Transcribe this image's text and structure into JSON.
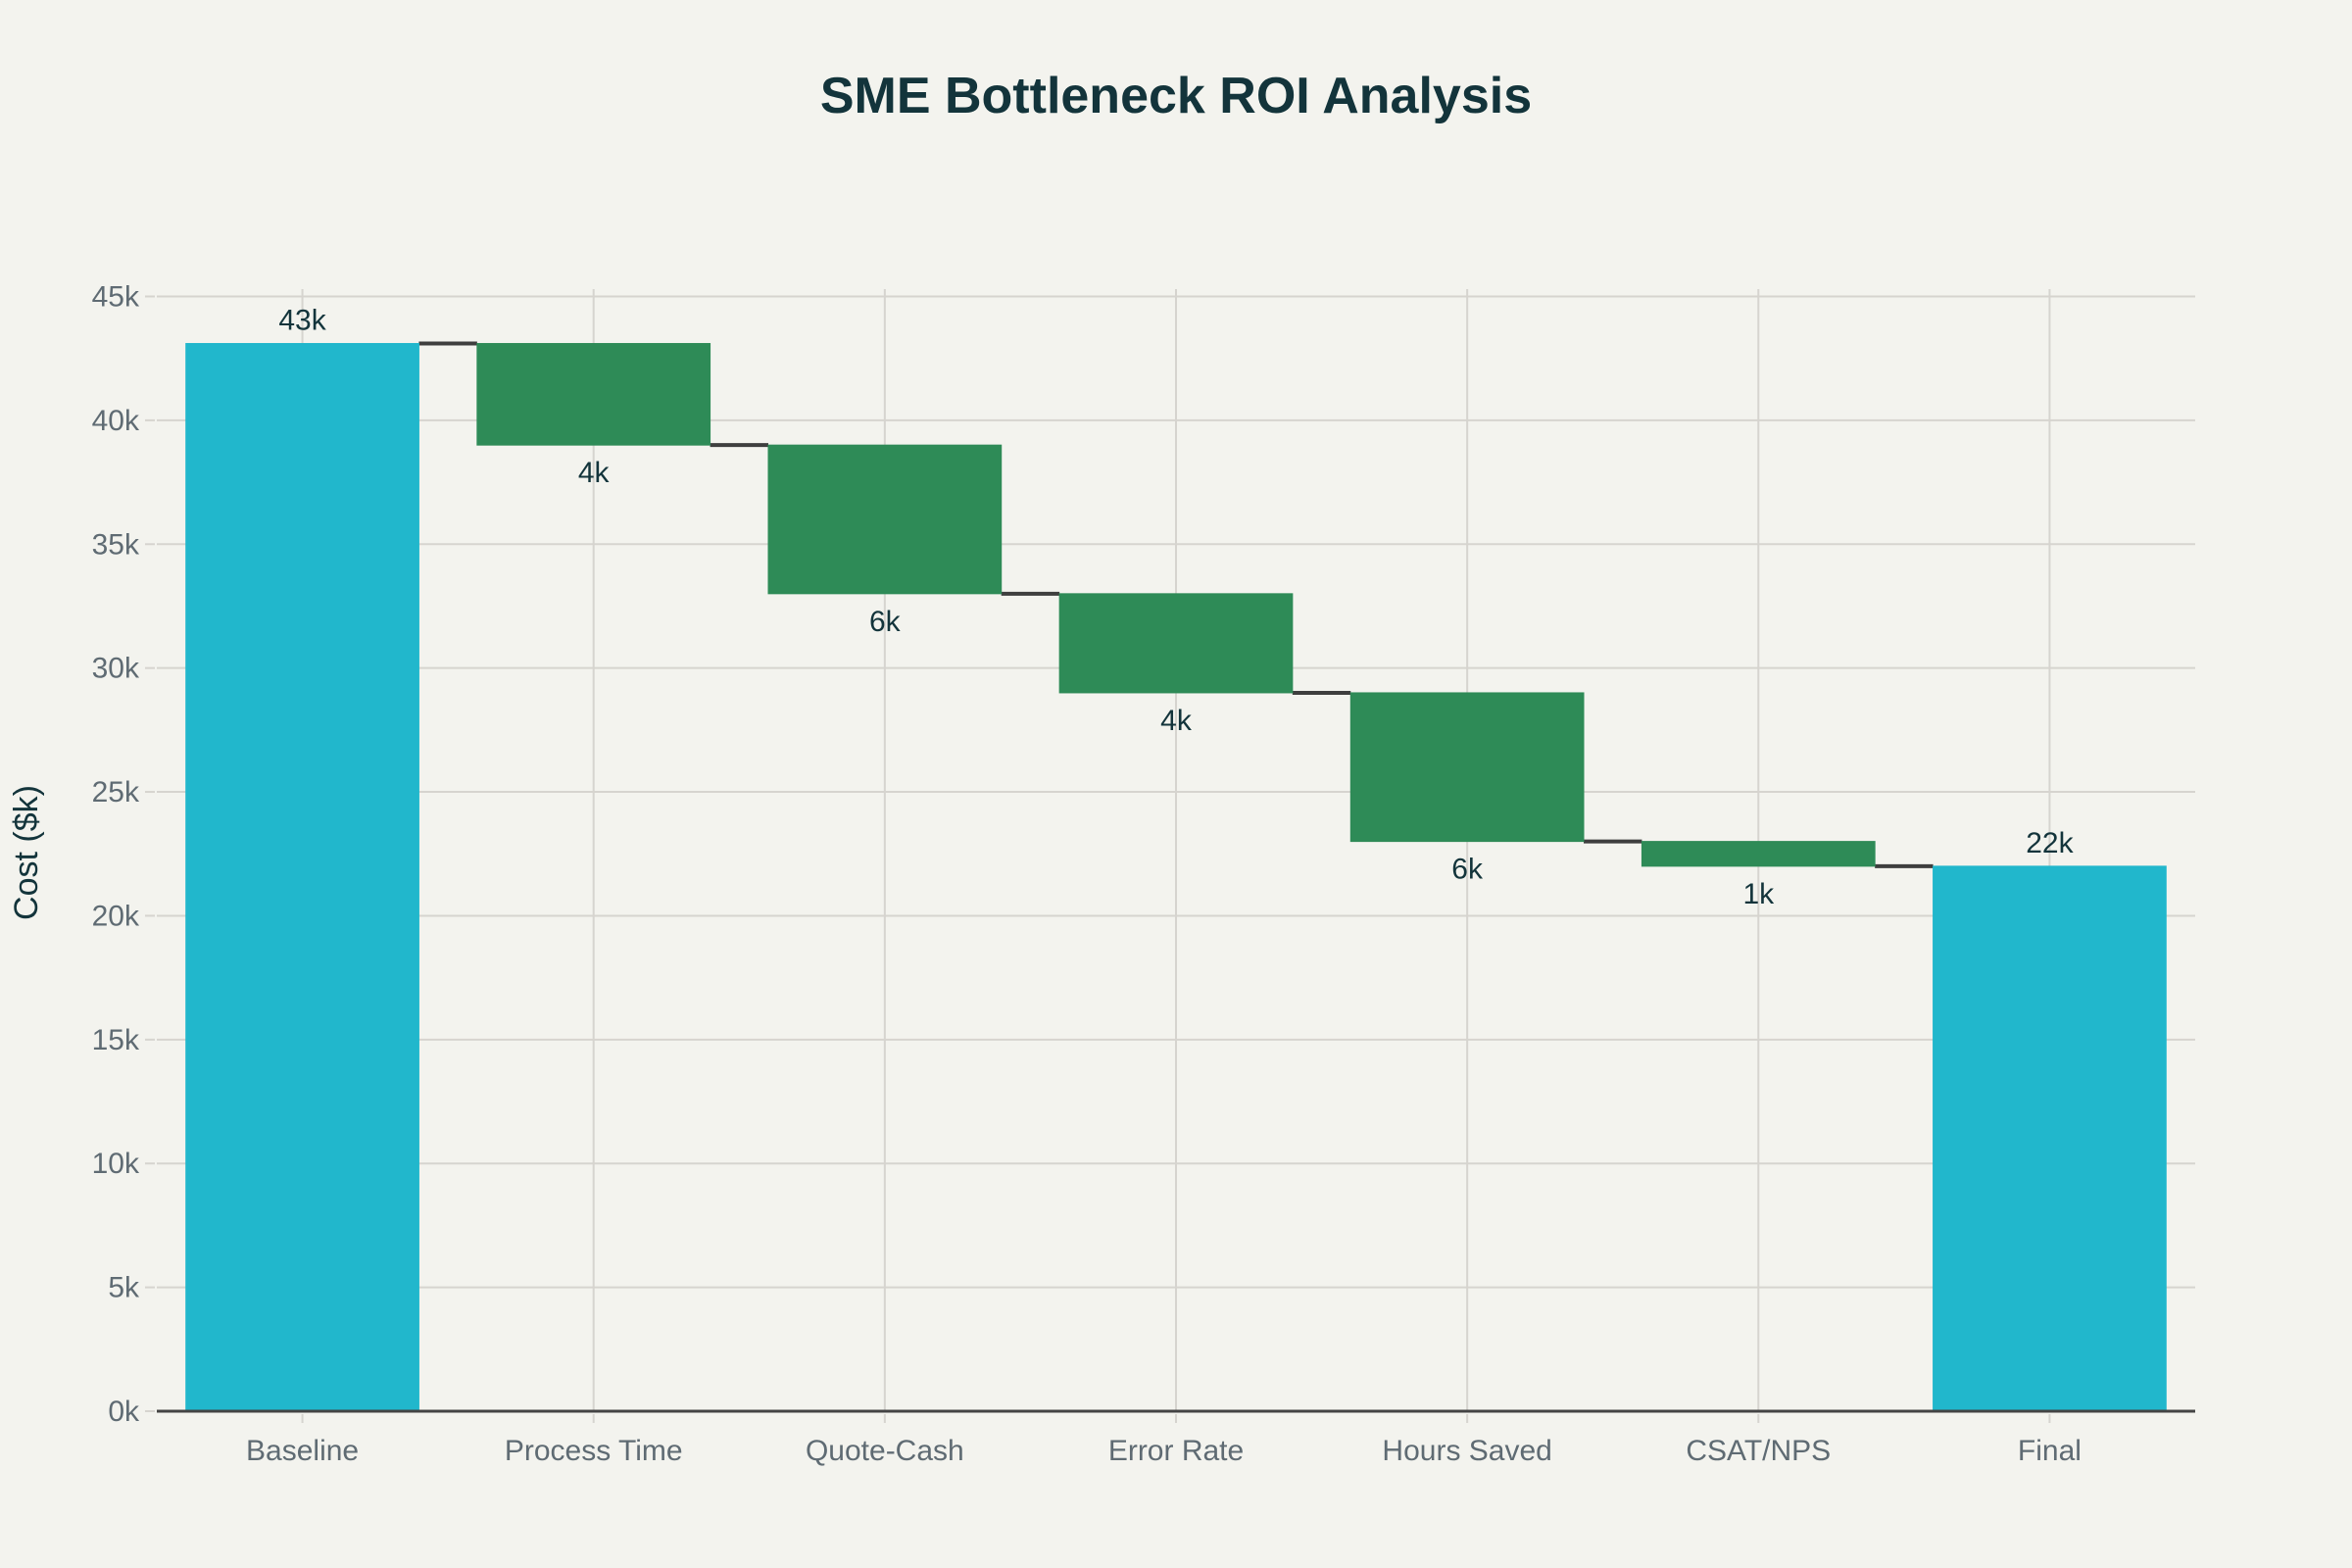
{
  "chart_data": {
    "type": "bar",
    "subtype": "waterfall",
    "title": "SME Bottleneck ROI Analysis",
    "xlabel": "",
    "ylabel": "Cost ($k)",
    "ylim": [
      0,
      45
    ],
    "yticks": [
      0,
      5,
      10,
      15,
      20,
      25,
      30,
      35,
      40,
      45
    ],
    "ytick_labels": [
      "0k",
      "5k",
      "10k",
      "15k",
      "20k",
      "25k",
      "30k",
      "35k",
      "40k",
      "45k"
    ],
    "grid": true,
    "legend": "none",
    "categories": [
      "Baseline",
      "Process Time",
      "Quote-Cash",
      "Error Rate",
      "Hours Saved",
      "CSAT/NPS",
      "Final"
    ],
    "measure": [
      "absolute",
      "relative",
      "relative",
      "relative",
      "relative",
      "relative",
      "total"
    ],
    "values": [
      43.1,
      -4.1,
      -6.0,
      -4.0,
      -6.0,
      -1.0,
      22.0
    ],
    "data_labels": [
      "43k",
      "4k",
      "6k",
      "4k",
      "6k",
      "1k",
      "22k"
    ],
    "colors": {
      "total": "#21b7cc",
      "decrease": "#2e8b57",
      "connector": "#3e3e3e",
      "background": "#f3f3ee"
    }
  }
}
